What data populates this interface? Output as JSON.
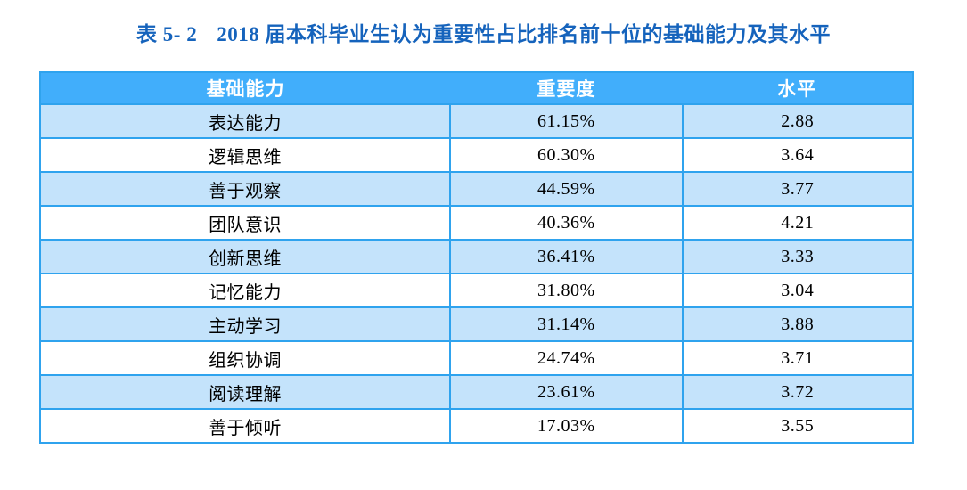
{
  "title": {
    "label": "表 5- 2",
    "text": "2018 届本科毕业生认为重要性占比排名前十位的基础能力及其水平"
  },
  "colors": {
    "header_bg": "#41AEFB",
    "row_alt_bg": "#C4E3FB",
    "border": "#2FA3EE",
    "title_color": "#1563BC",
    "header_text": "#FFFFFF",
    "body_text": "#000000"
  },
  "table": {
    "columns": [
      "基础能力",
      "重要度",
      "水平"
    ],
    "rows": [
      {
        "ability": "表达能力",
        "importance": "61.15%",
        "level": "2.88"
      },
      {
        "ability": "逻辑思维",
        "importance": "60.30%",
        "level": "3.64"
      },
      {
        "ability": "善于观察",
        "importance": "44.59%",
        "level": "3.77"
      },
      {
        "ability": "团队意识",
        "importance": "40.36%",
        "level": "4.21"
      },
      {
        "ability": "创新思维",
        "importance": "36.41%",
        "level": "3.33"
      },
      {
        "ability": "记忆能力",
        "importance": "31.80%",
        "level": "3.04"
      },
      {
        "ability": "主动学习",
        "importance": "31.14%",
        "level": "3.88"
      },
      {
        "ability": "组织协调",
        "importance": "24.74%",
        "level": "3.71"
      },
      {
        "ability": "阅读理解",
        "importance": "23.61%",
        "level": "3.72"
      },
      {
        "ability": "善于倾听",
        "importance": "17.03%",
        "level": "3.55"
      }
    ]
  }
}
